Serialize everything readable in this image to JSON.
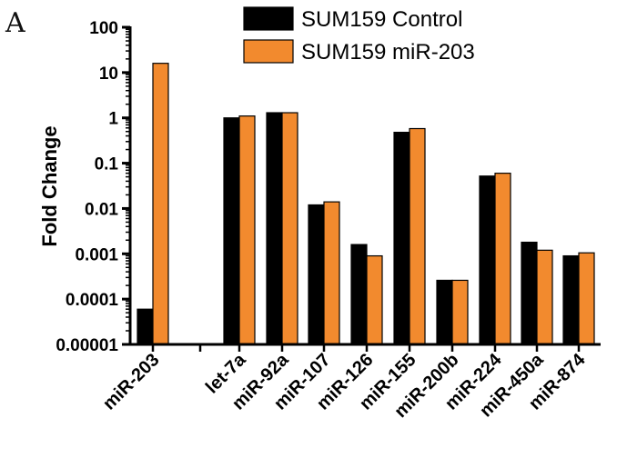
{
  "panel_label": "A",
  "chart_data": {
    "type": "bar",
    "categories": [
      "miR-203",
      "",
      "let-7a",
      "miR-92a",
      "miR-107",
      "miR-126",
      "miR-155",
      "miR-200b",
      "miR-224",
      "miR-450a",
      "miR-874"
    ],
    "series": [
      {
        "name": "SUM159 Control",
        "color": "#000000",
        "values": [
          6e-05,
          null,
          1.0,
          1.3,
          0.012,
          0.0016,
          0.48,
          0.00026,
          0.052,
          0.0018,
          0.0009
        ]
      },
      {
        "name": "SUM159 miR-203",
        "color": "#f28a2e",
        "values": [
          16,
          null,
          1.1,
          1.3,
          0.014,
          0.0009,
          0.58,
          0.00026,
          0.06,
          0.0012,
          0.00105
        ]
      }
    ],
    "ylabel": "Fold Change",
    "yscale": "log",
    "ylim": [
      1e-05,
      100
    ],
    "yticks": [
      "0.00001",
      "0.0001",
      "0.001",
      "0.01",
      "0.1",
      "1",
      "10",
      "100"
    ],
    "legend_position": "top-right"
  }
}
